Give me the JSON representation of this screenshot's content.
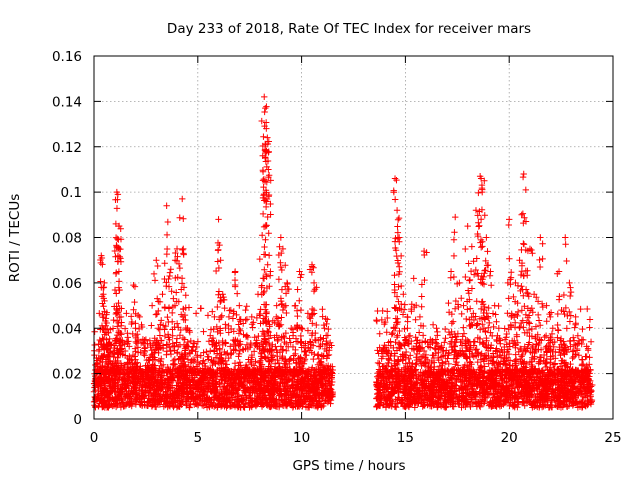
{
  "chart_data": {
    "type": "scatter",
    "title": "Day 233 of 2018, Rate Of TEC Index for receiver mars",
    "xlabel": "GPS time / hours",
    "ylabel": "ROTI / TECUs",
    "xlim": [
      0,
      25
    ],
    "ylim": [
      0,
      0.16
    ],
    "xticks": [
      0,
      5,
      10,
      15,
      20,
      25
    ],
    "xtick_labels": [
      "0",
      "5",
      "10",
      "15",
      "20",
      "25"
    ],
    "yticks": [
      0,
      0.02,
      0.04,
      0.06,
      0.08,
      0.1,
      0.12,
      0.14,
      0.16
    ],
    "ytick_labels": [
      "0",
      "0.02",
      "0.04",
      "0.06",
      "0.08",
      "0.1",
      "0.12",
      "0.14",
      "0.16"
    ],
    "grid": true,
    "marker": "+",
    "color": "#ff0000",
    "series": [
      {
        "name": "ROTI",
        "points": [
          [
            0.0,
            0.012
          ],
          [
            0.1,
            0.018
          ],
          [
            0.2,
            0.015
          ],
          [
            0.3,
            0.025
          ],
          [
            0.4,
            0.04
          ],
          [
            0.45,
            0.055
          ],
          [
            0.5,
            0.06
          ],
          [
            0.35,
            0.072
          ],
          [
            0.6,
            0.046
          ],
          [
            0.7,
            0.038
          ],
          [
            0.8,
            0.03
          ],
          [
            1.0,
            0.02
          ],
          [
            1.1,
            0.1
          ],
          [
            1.15,
            0.099
          ],
          [
            1.2,
            0.085
          ],
          [
            1.1,
            0.076
          ],
          [
            1.2,
            0.065
          ],
          [
            1.3,
            0.045
          ],
          [
            1.5,
            0.03
          ],
          [
            1.7,
            0.025
          ],
          [
            1.9,
            0.059
          ],
          [
            2.0,
            0.04
          ],
          [
            2.2,
            0.045
          ],
          [
            2.5,
            0.035
          ],
          [
            2.8,
            0.05
          ],
          [
            3.0,
            0.07
          ],
          [
            3.1,
            0.04
          ],
          [
            3.3,
            0.055
          ],
          [
            3.5,
            0.094
          ],
          [
            3.7,
            0.066
          ],
          [
            3.9,
            0.05
          ],
          [
            4.0,
            0.075
          ],
          [
            4.2,
            0.046
          ],
          [
            4.25,
            0.097
          ],
          [
            4.3,
            0.075
          ],
          [
            4.5,
            0.04
          ],
          [
            4.7,
            0.03
          ],
          [
            5.0,
            0.025
          ],
          [
            5.3,
            0.02
          ],
          [
            5.6,
            0.03
          ],
          [
            5.8,
            0.045
          ],
          [
            6.0,
            0.088
          ],
          [
            6.1,
            0.07
          ],
          [
            6.2,
            0.055
          ],
          [
            6.5,
            0.045
          ],
          [
            6.8,
            0.065
          ],
          [
            7.0,
            0.05
          ],
          [
            7.3,
            0.048
          ],
          [
            7.6,
            0.045
          ],
          [
            7.9,
            0.055
          ],
          [
            8.1,
            0.081
          ],
          [
            8.2,
            0.142
          ],
          [
            8.25,
            0.137
          ],
          [
            8.3,
            0.128
          ],
          [
            8.35,
            0.124
          ],
          [
            8.4,
            0.11
          ],
          [
            8.5,
            0.065
          ],
          [
            8.8,
            0.05
          ],
          [
            9.0,
            0.08
          ],
          [
            9.1,
            0.075
          ],
          [
            9.3,
            0.06
          ],
          [
            9.5,
            0.04
          ],
          [
            9.7,
            0.05
          ],
          [
            9.9,
            0.065
          ],
          [
            10.0,
            0.04
          ],
          [
            10.2,
            0.03
          ],
          [
            10.5,
            0.068
          ],
          [
            10.6,
            0.06
          ],
          [
            10.9,
            0.035
          ],
          [
            11.1,
            0.04
          ],
          [
            11.2,
            0.03
          ],
          [
            11.4,
            0.02
          ],
          [
            13.6,
            0.015
          ],
          [
            13.9,
            0.02
          ],
          [
            14.2,
            0.03
          ],
          [
            14.5,
            0.106
          ],
          [
            14.6,
            0.092
          ],
          [
            14.7,
            0.08
          ],
          [
            14.9,
            0.055
          ],
          [
            15.1,
            0.04
          ],
          [
            15.4,
            0.062
          ],
          [
            15.7,
            0.045
          ],
          [
            15.9,
            0.074
          ],
          [
            16.2,
            0.035
          ],
          [
            16.5,
            0.04
          ],
          [
            16.8,
            0.03
          ],
          [
            17.2,
            0.065
          ],
          [
            17.4,
            0.089
          ],
          [
            17.6,
            0.06
          ],
          [
            17.8,
            0.05
          ],
          [
            18.0,
            0.085
          ],
          [
            18.2,
            0.076
          ],
          [
            18.4,
            0.092
          ],
          [
            18.6,
            0.107
          ],
          [
            18.7,
            0.1
          ],
          [
            18.8,
            0.105
          ],
          [
            18.9,
            0.08
          ],
          [
            19.1,
            0.065
          ],
          [
            19.3,
            0.05
          ],
          [
            19.5,
            0.04
          ],
          [
            19.8,
            0.035
          ],
          [
            20.0,
            0.088
          ],
          [
            20.3,
            0.06
          ],
          [
            20.5,
            0.07
          ],
          [
            20.7,
            0.108
          ],
          [
            20.8,
            0.101
          ],
          [
            21.0,
            0.075
          ],
          [
            21.2,
            0.055
          ],
          [
            21.5,
            0.08
          ],
          [
            21.8,
            0.05
          ],
          [
            22.1,
            0.04
          ],
          [
            22.4,
            0.065
          ],
          [
            22.7,
            0.08
          ],
          [
            22.9,
            0.06
          ],
          [
            23.2,
            0.045
          ],
          [
            23.5,
            0.035
          ],
          [
            23.8,
            0.02
          ],
          [
            24.0,
            0.015
          ]
        ]
      }
    ],
    "dense_band": {
      "segments": [
        [
          0.0,
          11.5
        ],
        [
          13.6,
          24.0
        ]
      ],
      "typical_range": [
        0.005,
        0.022
      ],
      "point_count": 5200
    }
  }
}
